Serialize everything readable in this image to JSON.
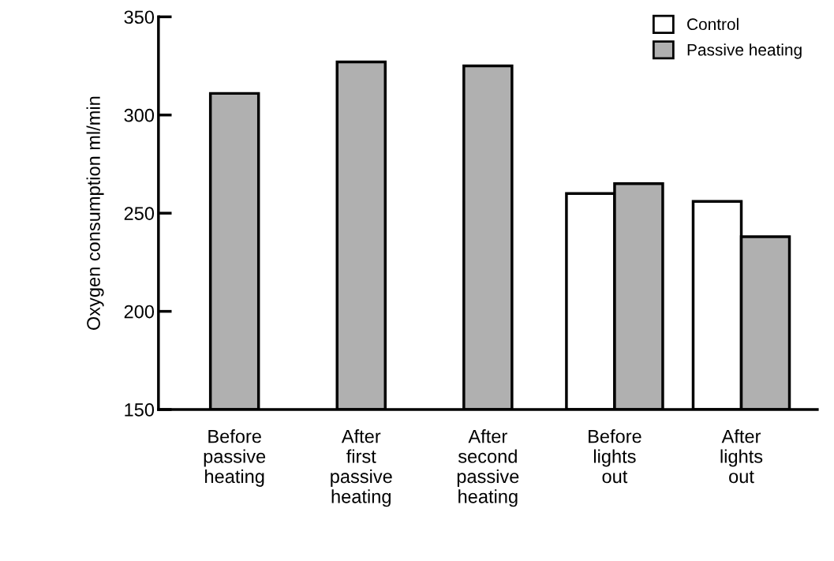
{
  "chart_data": {
    "type": "bar",
    "ylabel": "Oxygen consumption ml/min",
    "categories": [
      "Before\npassive\nheating",
      "After\nfirst\npassive\nheating",
      "After\nsecond\npassive\nheating",
      "Before\nlights\nout",
      "After\nlights\nout"
    ],
    "series": [
      {
        "name": "Control",
        "color": "#ffffff",
        "values": [
          null,
          null,
          null,
          260,
          256
        ]
      },
      {
        "name": "Passive heating",
        "color": "#b0b0b0",
        "values": [
          311,
          327,
          325,
          265,
          238
        ]
      }
    ],
    "ylim": [
      150,
      350
    ],
    "yticks": [
      150,
      200,
      250,
      300,
      350
    ],
    "grid": false,
    "legend": "top right"
  }
}
